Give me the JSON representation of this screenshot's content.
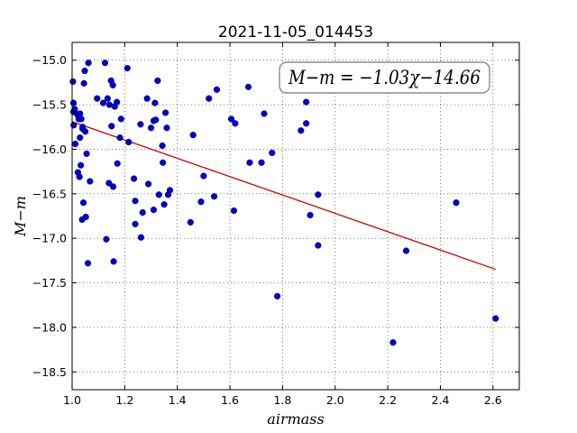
{
  "chart_data": {
    "type": "scatter",
    "title": "2021-11-05_014453",
    "xlabel": "airmass",
    "ylabel": "M−m",
    "xlim": [
      1.0,
      2.7
    ],
    "ylim": [
      -18.7,
      -14.8
    ],
    "y_inverted": true,
    "grid": true,
    "x_ticks": [
      1.0,
      1.2,
      1.4,
      1.6,
      1.8,
      2.0,
      2.2,
      2.4,
      2.6
    ],
    "x_tick_labels": [
      "1.0",
      "1.2",
      "1.4",
      "1.6",
      "1.8",
      "2.0",
      "2.2",
      "2.4",
      "2.6"
    ],
    "y_ticks": [
      -15.0,
      -15.5,
      -16.0,
      -16.5,
      -17.0,
      -17.5,
      -18.0,
      -18.5
    ],
    "y_tick_labels": [
      "−15.0",
      "−15.5",
      "−16.0",
      "−16.5",
      "−17.0",
      "−17.5",
      "−18.0",
      "−18.5"
    ],
    "annotation": "M−m = −1.03χ−14.66",
    "annotation_placement": "top-right",
    "colors": {
      "points": "#0000cc",
      "fit": "#cc0000"
    },
    "fit": {
      "slope": -1.03,
      "intercept": -14.66,
      "x_range": [
        1.0,
        2.61
      ]
    },
    "points": [
      [
        1.003,
        -15.24
      ],
      [
        1.005,
        -15.48
      ],
      [
        1.005,
        -15.58
      ],
      [
        1.006,
        -15.73
      ],
      [
        1.01,
        -15.55
      ],
      [
        1.012,
        -15.94
      ],
      [
        1.02,
        -15.61
      ],
      [
        1.022,
        -16.26
      ],
      [
        1.025,
        -15.66
      ],
      [
        1.028,
        -16.31
      ],
      [
        1.03,
        -15.6
      ],
      [
        1.03,
        -15.87
      ],
      [
        1.033,
        -16.18
      ],
      [
        1.035,
        -15.66
      ],
      [
        1.038,
        -16.79
      ],
      [
        1.04,
        -15.77
      ],
      [
        1.04,
        -15.75
      ],
      [
        1.043,
        -16.6
      ],
      [
        1.045,
        -15.26
      ],
      [
        1.048,
        -15.12
      ],
      [
        1.05,
        -15.8
      ],
      [
        1.052,
        -16.76
      ],
      [
        1.055,
        -16.05
      ],
      [
        1.06,
        -17.28
      ],
      [
        1.062,
        -15.03
      ],
      [
        1.068,
        -16.36
      ],
      [
        1.095,
        -15.43
      ],
      [
        1.118,
        -15.48
      ],
      [
        1.125,
        -15.03
      ],
      [
        1.13,
        -17.01
      ],
      [
        1.135,
        -15.43
      ],
      [
        1.14,
        -16.38
      ],
      [
        1.142,
        -15.5
      ],
      [
        1.148,
        -15.23
      ],
      [
        1.15,
        -15.74
      ],
      [
        1.155,
        -15.28
      ],
      [
        1.156,
        -16.42
      ],
      [
        1.158,
        -17.26
      ],
      [
        1.162,
        -15.52
      ],
      [
        1.17,
        -15.47
      ],
      [
        1.172,
        -16.16
      ],
      [
        1.182,
        -15.87
      ],
      [
        1.186,
        -15.66
      ],
      [
        1.21,
        -15.09
      ],
      [
        1.215,
        -15.92
      ],
      [
        1.235,
        -16.33
      ],
      [
        1.24,
        -16.84
      ],
      [
        1.24,
        -16.58
      ],
      [
        1.26,
        -15.72
      ],
      [
        1.262,
        -16.99
      ],
      [
        1.268,
        -16.71
      ],
      [
        1.285,
        -15.43
      ],
      [
        1.29,
        -16.39
      ],
      [
        1.3,
        -15.76
      ],
      [
        1.31,
        -15.68
      ],
      [
        1.31,
        -16.68
      ],
      [
        1.315,
        -15.48
      ],
      [
        1.318,
        -15.67
      ],
      [
        1.325,
        -15.23
      ],
      [
        1.33,
        -16.51
      ],
      [
        1.343,
        -15.96
      ],
      [
        1.345,
        -16.15
      ],
      [
        1.35,
        -16.62
      ],
      [
        1.355,
        -15.59
      ],
      [
        1.36,
        -15.76
      ],
      [
        1.365,
        -16.51
      ],
      [
        1.372,
        -16.46
      ],
      [
        1.45,
        -16.82
      ],
      [
        1.46,
        -15.84
      ],
      [
        1.49,
        -16.59
      ],
      [
        1.5,
        -16.3
      ],
      [
        1.52,
        -15.43
      ],
      [
        1.54,
        -16.53
      ],
      [
        1.55,
        -15.33
      ],
      [
        1.605,
        -15.66
      ],
      [
        1.615,
        -16.69
      ],
      [
        1.62,
        -15.71
      ],
      [
        1.67,
        -15.3
      ],
      [
        1.675,
        -16.15
      ],
      [
        1.72,
        -16.15
      ],
      [
        1.73,
        -15.6
      ],
      [
        1.76,
        -16.04
      ],
      [
        1.78,
        -17.65
      ],
      [
        1.87,
        -15.79
      ],
      [
        1.89,
        -15.47
      ],
      [
        1.89,
        -15.71
      ],
      [
        1.905,
        -16.74
      ],
      [
        1.935,
        -16.51
      ],
      [
        1.935,
        -17.08
      ],
      [
        2.22,
        -18.17
      ],
      [
        2.27,
        -17.14
      ],
      [
        2.46,
        -16.6
      ],
      [
        2.61,
        -17.9
      ]
    ]
  }
}
